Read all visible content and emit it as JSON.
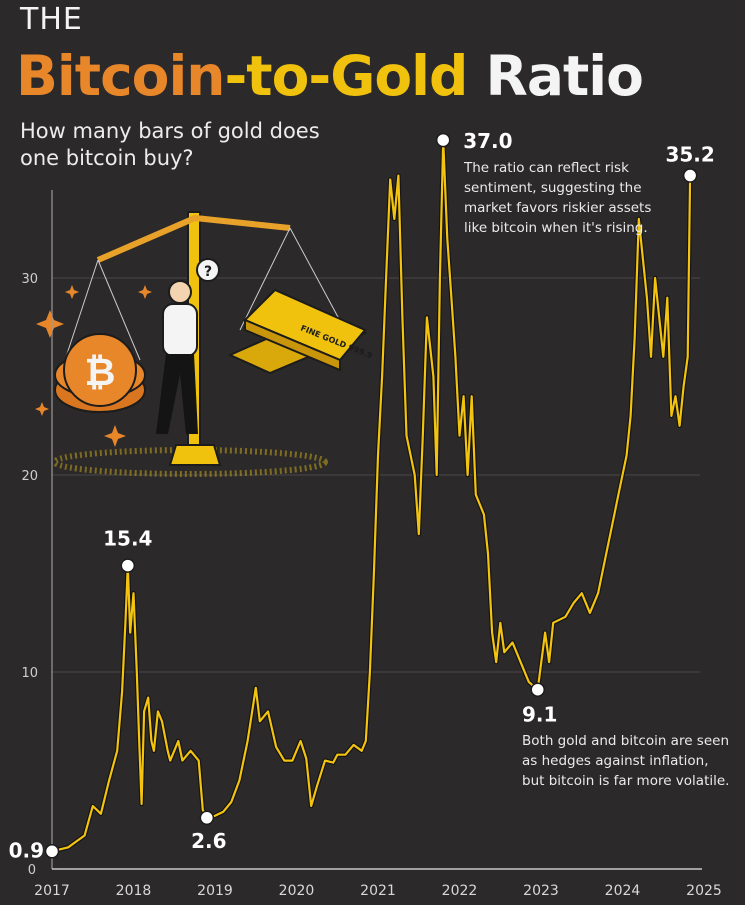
{
  "header": {
    "kicker": "THE",
    "title_part1": "Bitcoin",
    "title_part2": "-to-Gold",
    "title_part3": "Ratio",
    "subtitle": "How many bars of gold does one bitcoin buy?"
  },
  "illustration": {
    "gold_bar_text": "FINE GOLD 999.9",
    "question_mark": "?"
  },
  "colors": {
    "background": "#2b2929",
    "line": "#f2c40f",
    "bitcoin_orange": "#e8862a",
    "gold": "#f0c20e",
    "text": "#f2f2f2"
  },
  "chart_data": {
    "type": "line",
    "title": "The Bitcoin-to-Gold Ratio",
    "xlabel": "",
    "ylabel": "",
    "xlim": [
      2017,
      2025
    ],
    "ylim": [
      0,
      35
    ],
    "x_ticks": [
      "2017",
      "2018",
      "2019",
      "2020",
      "2021",
      "2022",
      "2023",
      "2024",
      "2025"
    ],
    "y_ticks": [
      "0",
      "10",
      "20",
      "30"
    ],
    "grid": true,
    "series": [
      {
        "name": "Bitcoin-to-Gold Ratio",
        "points": [
          [
            2017.0,
            0.9
          ],
          [
            2017.1,
            1.0
          ],
          [
            2017.2,
            1.1
          ],
          [
            2017.3,
            1.4
          ],
          [
            2017.4,
            1.7
          ],
          [
            2017.5,
            3.2
          ],
          [
            2017.6,
            2.8
          ],
          [
            2017.7,
            4.5
          ],
          [
            2017.8,
            6.0
          ],
          [
            2017.86,
            9.0
          ],
          [
            2017.9,
            12.5
          ],
          [
            2017.93,
            15.4
          ],
          [
            2017.96,
            12.0
          ],
          [
            2018.0,
            14.0
          ],
          [
            2018.04,
            10.0
          ],
          [
            2018.07,
            6.5
          ],
          [
            2018.1,
            3.3
          ],
          [
            2018.13,
            8.0
          ],
          [
            2018.18,
            8.7
          ],
          [
            2018.22,
            6.5
          ],
          [
            2018.25,
            6.0
          ],
          [
            2018.3,
            8.0
          ],
          [
            2018.35,
            7.5
          ],
          [
            2018.42,
            6.0
          ],
          [
            2018.45,
            5.5
          ],
          [
            2018.55,
            6.5
          ],
          [
            2018.6,
            5.5
          ],
          [
            2018.7,
            6.0
          ],
          [
            2018.8,
            5.5
          ],
          [
            2018.85,
            3.0
          ],
          [
            2018.9,
            2.6
          ],
          [
            2019.0,
            2.7
          ],
          [
            2019.1,
            2.9
          ],
          [
            2019.2,
            3.4
          ],
          [
            2019.3,
            4.5
          ],
          [
            2019.4,
            6.5
          ],
          [
            2019.5,
            9.2
          ],
          [
            2019.55,
            7.5
          ],
          [
            2019.65,
            8.0
          ],
          [
            2019.75,
            6.2
          ],
          [
            2019.85,
            5.5
          ],
          [
            2019.95,
            5.5
          ],
          [
            2020.05,
            6.5
          ],
          [
            2020.12,
            5.6
          ],
          [
            2020.18,
            3.2
          ],
          [
            2020.25,
            4.2
          ],
          [
            2020.35,
            5.5
          ],
          [
            2020.45,
            5.4
          ],
          [
            2020.5,
            5.8
          ],
          [
            2020.6,
            5.8
          ],
          [
            2020.7,
            6.3
          ],
          [
            2020.8,
            6.0
          ],
          [
            2020.85,
            6.5
          ],
          [
            2020.9,
            10.0
          ],
          [
            2020.95,
            15.0
          ],
          [
            2021.0,
            21.0
          ],
          [
            2021.05,
            25.0
          ],
          [
            2021.1,
            30.0
          ],
          [
            2021.15,
            35.0
          ],
          [
            2021.2,
            33.0
          ],
          [
            2021.25,
            35.2
          ],
          [
            2021.3,
            28.0
          ],
          [
            2021.35,
            22.0
          ],
          [
            2021.45,
            20.0
          ],
          [
            2021.5,
            17.0
          ],
          [
            2021.55,
            22.0
          ],
          [
            2021.6,
            28.0
          ],
          [
            2021.68,
            25.0
          ],
          [
            2021.72,
            20.0
          ],
          [
            2021.76,
            30.0
          ],
          [
            2021.8,
            37.0
          ],
          [
            2021.85,
            32.0
          ],
          [
            2021.9,
            29.0
          ],
          [
            2021.95,
            26.0
          ],
          [
            2022.0,
            22.0
          ],
          [
            2022.05,
            24.0
          ],
          [
            2022.1,
            20.0
          ],
          [
            2022.15,
            24.0
          ],
          [
            2022.2,
            19.0
          ],
          [
            2022.3,
            18.0
          ],
          [
            2022.35,
            16.0
          ],
          [
            2022.4,
            12.0
          ],
          [
            2022.45,
            10.5
          ],
          [
            2022.5,
            12.5
          ],
          [
            2022.55,
            11.0
          ],
          [
            2022.65,
            11.5
          ],
          [
            2022.75,
            10.5
          ],
          [
            2022.85,
            9.5
          ],
          [
            2022.96,
            9.1
          ],
          [
            2023.05,
            12.0
          ],
          [
            2023.1,
            10.5
          ],
          [
            2023.15,
            12.5
          ],
          [
            2023.3,
            12.8
          ],
          [
            2023.4,
            13.5
          ],
          [
            2023.5,
            14.0
          ],
          [
            2023.6,
            13.0
          ],
          [
            2023.7,
            14.0
          ],
          [
            2023.8,
            16.0
          ],
          [
            2023.85,
            17.0
          ],
          [
            2023.95,
            19.0
          ],
          [
            2024.05,
            21.0
          ],
          [
            2024.1,
            23.0
          ],
          [
            2024.15,
            27.0
          ],
          [
            2024.2,
            33.0
          ],
          [
            2024.3,
            29.0
          ],
          [
            2024.35,
            26.0
          ],
          [
            2024.4,
            30.0
          ],
          [
            2024.5,
            26.0
          ],
          [
            2024.55,
            29.0
          ],
          [
            2024.6,
            23.0
          ],
          [
            2024.65,
            24.0
          ],
          [
            2024.7,
            22.5
          ],
          [
            2024.75,
            24.5
          ],
          [
            2024.8,
            26.0
          ],
          [
            2024.83,
            35.2
          ]
        ]
      }
    ],
    "annotations": [
      {
        "label": "0.9",
        "x": 2017.0,
        "y": 0.9
      },
      {
        "label": "15.4",
        "x": 2017.93,
        "y": 15.4
      },
      {
        "label": "2.6",
        "x": 2018.9,
        "y": 2.6
      },
      {
        "label": "37.0",
        "x": 2021.8,
        "y": 37.0,
        "text": "The ratio can reflect risk sentiment, suggesting the market favors riskier assets like bitcoin when it's rising."
      },
      {
        "label": "9.1",
        "x": 2022.96,
        "y": 9.1,
        "text": "Both gold and bitcoin are seen as hedges against inflation, but bitcoin is far more volatile."
      },
      {
        "label": "35.2",
        "x": 2024.83,
        "y": 35.2
      }
    ]
  }
}
